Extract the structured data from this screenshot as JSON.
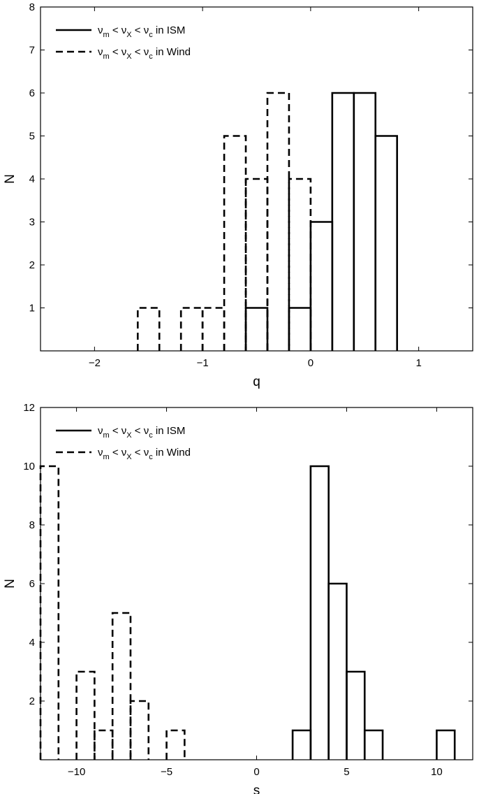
{
  "chart_data": [
    {
      "type": "step-histogram",
      "xlabel": "q",
      "ylabel": "N",
      "xlim": [
        -2.5,
        1.5
      ],
      "ylim": [
        0,
        8
      ],
      "xticks": [
        -2,
        -1,
        0,
        1
      ],
      "xtick_labels": [
        "−2",
        "−1",
        "0",
        "1"
      ],
      "yticks": [
        1,
        2,
        3,
        4,
        5,
        6,
        7,
        8
      ],
      "ytick_labels": [
        "1",
        "2",
        "3",
        "4",
        "5",
        "6",
        "7",
        "8"
      ],
      "legend_position": "top-left",
      "series": [
        {
          "name": "νm < νX < νc in ISM",
          "line": "solid",
          "bins": [
            {
              "x0": -0.6,
              "x1": -0.4,
              "count": 1
            },
            {
              "x0": -0.2,
              "x1": 0.0,
              "count": 1
            },
            {
              "x0": 0.0,
              "x1": 0.2,
              "count": 3
            },
            {
              "x0": 0.2,
              "x1": 0.4,
              "count": 6
            },
            {
              "x0": 0.4,
              "x1": 0.6,
              "count": 6
            },
            {
              "x0": 0.6,
              "x1": 0.8,
              "count": 5
            }
          ]
        },
        {
          "name": "νm < νX < νc in Wind",
          "line": "dashed",
          "bins": [
            {
              "x0": -1.6,
              "x1": -1.4,
              "count": 1
            },
            {
              "x0": -1.2,
              "x1": -1.0,
              "count": 1
            },
            {
              "x0": -1.0,
              "x1": -0.8,
              "count": 1
            },
            {
              "x0": -0.8,
              "x1": -0.6,
              "count": 5
            },
            {
              "x0": -0.6,
              "x1": -0.4,
              "count": 4
            },
            {
              "x0": -0.4,
              "x1": -0.2,
              "count": 6
            },
            {
              "x0": -0.2,
              "x1": 0.0,
              "count": 4
            }
          ]
        }
      ]
    },
    {
      "type": "step-histogram",
      "xlabel": "s",
      "ylabel": "N",
      "xlim": [
        -12,
        12
      ],
      "ylim": [
        0,
        12
      ],
      "xticks": [
        -10,
        -5,
        0,
        5,
        10
      ],
      "xtick_labels": [
        "−10",
        "−5",
        "0",
        "5",
        "10"
      ],
      "yticks": [
        2,
        4,
        6,
        8,
        10,
        12
      ],
      "ytick_labels": [
        "2",
        "4",
        "6",
        "8",
        "10",
        "12"
      ],
      "legend_position": "top-left",
      "series": [
        {
          "name": "νm < νX < νc in ISM",
          "line": "solid",
          "bins": [
            {
              "x0": 2,
              "x1": 3,
              "count": 1
            },
            {
              "x0": 3,
              "x1": 4,
              "count": 10
            },
            {
              "x0": 4,
              "x1": 5,
              "count": 6
            },
            {
              "x0": 5,
              "x1": 6,
              "count": 3
            },
            {
              "x0": 6,
              "x1": 7,
              "count": 1
            },
            {
              "x0": 10,
              "x1": 11,
              "count": 1
            }
          ]
        },
        {
          "name": "νm < νX < νc in Wind",
          "line": "dashed",
          "bins": [
            {
              "x0": -12,
              "x1": -11,
              "count": 10
            },
            {
              "x0": -10,
              "x1": -9,
              "count": 3
            },
            {
              "x0": -9,
              "x1": -8,
              "count": 1
            },
            {
              "x0": -8,
              "x1": -7,
              "count": 5
            },
            {
              "x0": -7,
              "x1": -6,
              "count": 2
            },
            {
              "x0": -5,
              "x1": -4,
              "count": 1
            }
          ]
        }
      ]
    }
  ],
  "legend_parts": {
    "nu": "ν",
    "m": "m",
    "X": "X",
    "c": "c",
    "lt": "<",
    "ism": "in ISM",
    "wind": "in Wind"
  }
}
